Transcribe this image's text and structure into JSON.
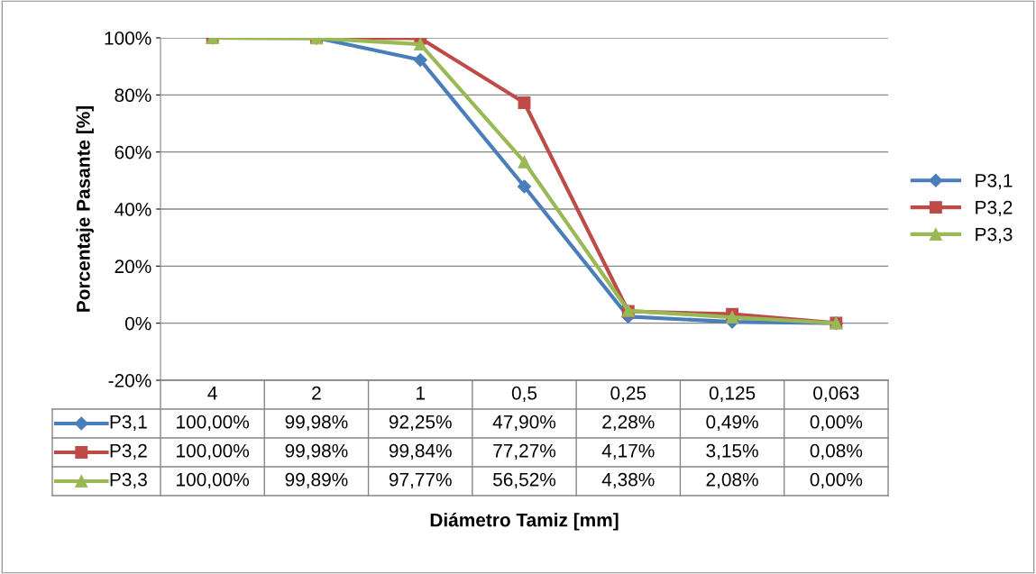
{
  "chart_data": {
    "type": "line",
    "annotations": [
      "Diámetro Tamiz [mm]"
    ],
    "ylabel": "Porcentaje Pasante [%]",
    "categories": [
      "4",
      "2",
      "1",
      "0,5",
      "0,25",
      "0,125",
      "0,063"
    ],
    "ylim": [
      -20,
      100
    ],
    "yticks": [
      {
        "value": -20,
        "label": "-20%"
      },
      {
        "value": 0,
        "label": "0%"
      },
      {
        "value": 20,
        "label": "20%"
      },
      {
        "value": 40,
        "label": "40%"
      },
      {
        "value": 60,
        "label": "60%"
      },
      {
        "value": 80,
        "label": "80%"
      },
      {
        "value": 100,
        "label": "100%"
      }
    ],
    "grid": "y",
    "legend": "right",
    "line_style": "solid",
    "series": [
      {
        "name": "P3,1",
        "color": "#4a7ebb",
        "marker": "diamond",
        "values": [
          100.0,
          99.98,
          92.25,
          47.9,
          2.28,
          0.49,
          0.0
        ],
        "value_labels": [
          "100,00%",
          "99,98%",
          "92,25%",
          "47,90%",
          "2,28%",
          "0,49%",
          "0,00%"
        ]
      },
      {
        "name": "P3,2",
        "color": "#be4b48",
        "marker": "square",
        "values": [
          100.0,
          99.98,
          99.84,
          77.27,
          4.17,
          3.15,
          0.08
        ],
        "value_labels": [
          "100,00%",
          "99,98%",
          "99,84%",
          "77,27%",
          "4,17%",
          "3,15%",
          "0,08%"
        ]
      },
      {
        "name": "P3,3",
        "color": "#98b954",
        "marker": "triangle",
        "values": [
          100.0,
          99.89,
          97.77,
          56.52,
          4.38,
          2.08,
          0.0
        ],
        "value_labels": [
          "100,00%",
          "99,89%",
          "97,77%",
          "56,52%",
          "4,38%",
          "2,08%",
          "0,00%"
        ]
      }
    ]
  }
}
